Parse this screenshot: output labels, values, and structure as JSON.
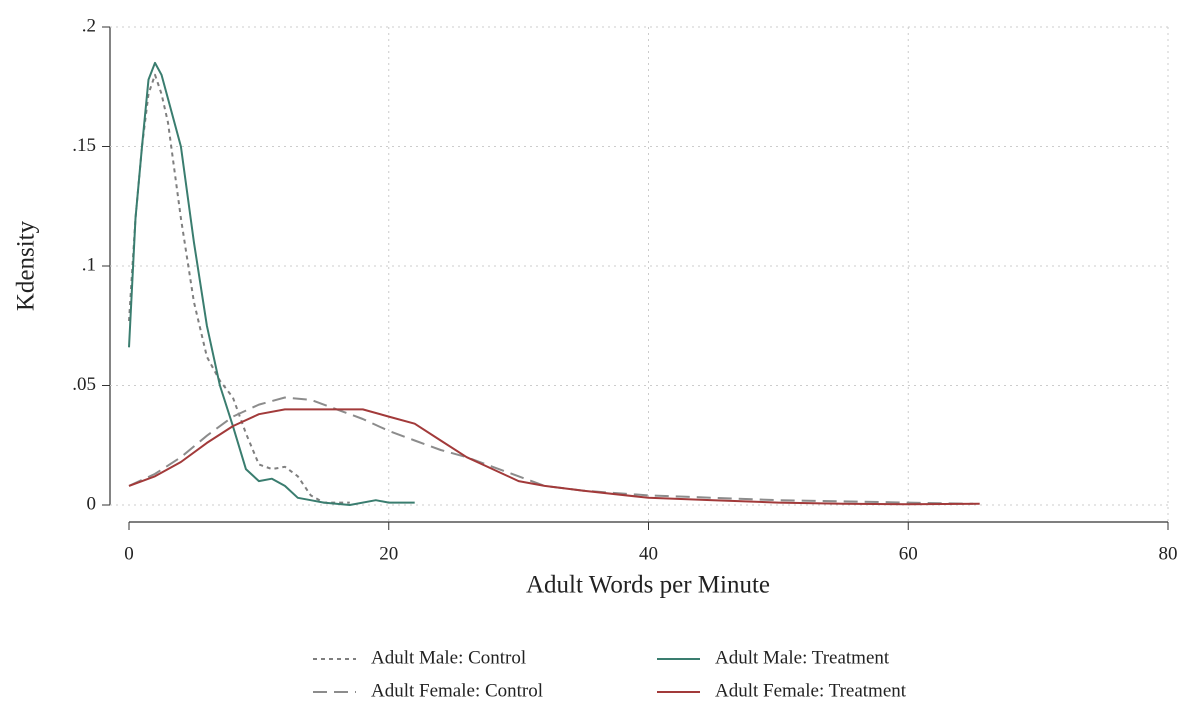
{
  "chart_data": {
    "type": "line",
    "x_label": "Adult Words per Minute",
    "y_label": "Kdensity",
    "xlim": [
      0,
      80
    ],
    "xticks": [
      0,
      20,
      40,
      60,
      80
    ],
    "ylim": [
      0,
      0.2
    ],
    "yticks": [
      0,
      {
        "value": 0.05,
        "label": ".05"
      },
      {
        "value": 0.1,
        "label": ".1"
      },
      {
        "value": 0.15,
        "label": ".15"
      },
      {
        "value": 0.2,
        "label": ".2"
      }
    ],
    "grid": true,
    "legend": "bottom",
    "series": [
      {
        "name": "Adult Male: Control",
        "color": "#7f7f7f",
        "dash": "dotted",
        "x": [
          0,
          0.5,
          1,
          1.5,
          2,
          2.5,
          3,
          4,
          5,
          6,
          7,
          8,
          9,
          10,
          11,
          12,
          13,
          14,
          15,
          16,
          17
        ],
        "values": [
          0.077,
          0.12,
          0.15,
          0.172,
          0.18,
          0.172,
          0.16,
          0.12,
          0.085,
          0.062,
          0.052,
          0.045,
          0.03,
          0.017,
          0.015,
          0.016,
          0.012,
          0.004,
          0.001,
          0.001,
          0.001
        ]
      },
      {
        "name": "Adult Male: Treatment",
        "color": "#3a7d6f",
        "dash": "solid",
        "x": [
          0,
          0.5,
          1,
          1.5,
          2,
          2.5,
          3,
          4,
          5,
          6,
          7,
          8,
          9,
          10,
          11,
          12,
          13,
          14,
          15,
          17,
          19,
          20,
          22
        ],
        "values": [
          0.066,
          0.12,
          0.15,
          0.178,
          0.185,
          0.18,
          0.17,
          0.15,
          0.11,
          0.075,
          0.05,
          0.033,
          0.015,
          0.01,
          0.011,
          0.008,
          0.003,
          0.002,
          0.001,
          0.0,
          0.002,
          0.001,
          0.001
        ]
      },
      {
        "name": "Adult Female: Control",
        "color": "#8c8c8c",
        "dash": "dashed",
        "x": [
          0,
          2,
          4,
          6,
          8,
          10,
          12,
          14,
          16,
          18,
          20,
          22,
          24,
          26,
          28,
          30,
          32,
          35,
          40,
          45,
          50,
          55,
          60,
          65
        ],
        "values": [
          0.008,
          0.013,
          0.02,
          0.029,
          0.037,
          0.042,
          0.045,
          0.044,
          0.04,
          0.036,
          0.031,
          0.027,
          0.023,
          0.02,
          0.016,
          0.012,
          0.008,
          0.006,
          0.004,
          0.003,
          0.002,
          0.0015,
          0.001,
          0.0005
        ]
      },
      {
        "name": "Adult Female: Treatment",
        "color": "#a23a3a",
        "dash": "solid",
        "x": [
          0,
          2,
          4,
          6,
          8,
          10,
          12,
          14,
          16,
          18,
          20,
          22,
          24,
          26,
          28,
          30,
          32,
          35,
          40,
          45,
          50,
          55,
          60,
          65.5
        ],
        "values": [
          0.008,
          0.012,
          0.018,
          0.026,
          0.033,
          0.038,
          0.04,
          0.04,
          0.04,
          0.04,
          0.037,
          0.034,
          0.027,
          0.02,
          0.015,
          0.01,
          0.008,
          0.006,
          0.003,
          0.002,
          0.001,
          0.0005,
          0.0003,
          0.0005
        ]
      }
    ]
  }
}
